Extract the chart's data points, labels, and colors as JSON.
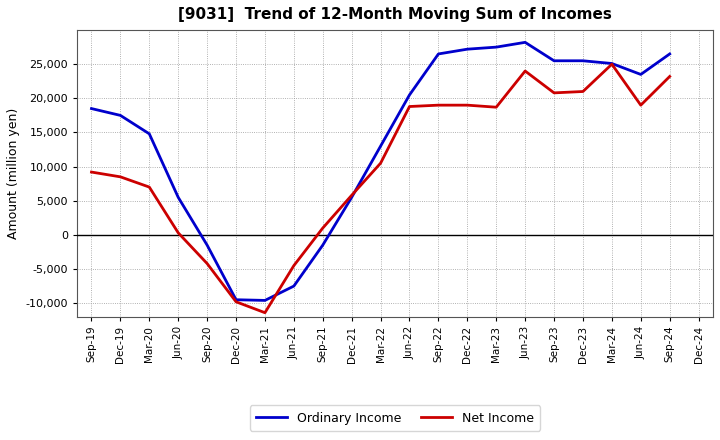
{
  "title": "[9031]  Trend of 12-Month Moving Sum of Incomes",
  "ylabel": "Amount (million yen)",
  "xlabels": [
    "Sep-19",
    "Dec-19",
    "Mar-20",
    "Jun-20",
    "Sep-20",
    "Dec-20",
    "Mar-21",
    "Jun-21",
    "Sep-21",
    "Dec-21",
    "Mar-22",
    "Jun-22",
    "Sep-22",
    "Dec-22",
    "Mar-23",
    "Jun-23",
    "Sep-23",
    "Dec-23",
    "Mar-24",
    "Jun-24",
    "Sep-24",
    "Dec-24"
  ],
  "ordinary_income": [
    18500,
    17500,
    14800,
    5500,
    -1500,
    -9500,
    -9600,
    -7500,
    -1500,
    5500,
    13000,
    20500,
    26500,
    27200,
    27500,
    28200,
    25500,
    25500,
    25100,
    23500,
    26500,
    null
  ],
  "net_income": [
    9200,
    8500,
    7000,
    300,
    -4200,
    -9800,
    -11400,
    -4500,
    1000,
    5800,
    10500,
    18800,
    19000,
    19000,
    18700,
    24000,
    20800,
    21000,
    25000,
    19000,
    23200,
    null
  ],
  "ordinary_color": "#0000cc",
  "net_color": "#cc0000",
  "background_color": "#ffffff",
  "plot_bg_color": "#ffffff",
  "grid_color": "#999999",
  "ylim": [
    -12000,
    30000
  ],
  "yticks": [
    -10000,
    -5000,
    0,
    5000,
    10000,
    15000,
    20000,
    25000
  ],
  "line_width": 2.0,
  "legend_labels": [
    "Ordinary Income",
    "Net Income"
  ]
}
